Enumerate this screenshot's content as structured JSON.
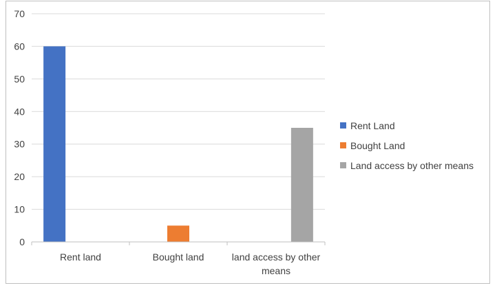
{
  "chart_data": {
    "type": "bar",
    "title": "",
    "xlabel": "",
    "ylabel": "",
    "categories": [
      "Rent land",
      "Bought land",
      "land access by other means"
    ],
    "series": [
      {
        "name": "Rent Land",
        "color": "#4472c4",
        "values": [
          60,
          0,
          0
        ]
      },
      {
        "name": "Bought Land",
        "color": "#ed7d31",
        "values": [
          0,
          5,
          0
        ]
      },
      {
        "name": "Land access by other means",
        "color": "#a5a5a5",
        "values": [
          0,
          0,
          35
        ]
      }
    ],
    "ylim": [
      0,
      70
    ],
    "yticks": [
      0,
      10,
      20,
      30,
      40,
      50,
      60,
      70
    ],
    "grid": true,
    "legend_position": "right"
  }
}
